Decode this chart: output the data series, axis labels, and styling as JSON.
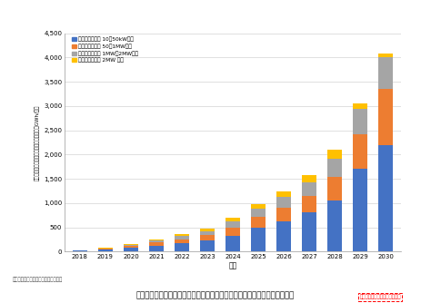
{
  "years": [
    "2018",
    "2019",
    "2020",
    "2021",
    "2022",
    "2023",
    "2024",
    "2025",
    "2026",
    "2027",
    "2028",
    "2029",
    "2030"
  ],
  "series": {
    "s1_blue": [
      15,
      35,
      75,
      120,
      165,
      220,
      330,
      500,
      620,
      800,
      1050,
      1700,
      2200
    ],
    "s2_orange": [
      5,
      18,
      40,
      65,
      90,
      120,
      160,
      220,
      280,
      350,
      480,
      720,
      1150
    ],
    "s3_gray": [
      3,
      12,
      25,
      45,
      65,
      85,
      130,
      170,
      220,
      280,
      380,
      530,
      650
    ],
    "s4_yellow": [
      2,
      8,
      15,
      25,
      35,
      50,
      70,
      90,
      110,
      140,
      190,
      100,
      90
    ]
  },
  "colors": {
    "s1_blue": "#4472C4",
    "s2_orange": "#ED7D31",
    "s3_gray": "#A5A5A5",
    "s4_yellow": "#FFC000"
  },
  "legend_labels": {
    "s1_blue": "太陽光発電容量 10～50kW未満",
    "s2_orange": "太陽光発電容量 50～1MW未満",
    "s3_gray": "太陽光発電容量 1MW～2MW未満",
    "s4_yellow": "太陽光発電容量 2MW 以上"
  },
  "xlabel": "年度",
  "ylabel": "太陽光発電関連定置型蓄電池年間導入量（GWh/年）",
  "ylim_max": 4500,
  "ytick_vals": [
    0,
    500,
    1000,
    1500,
    2000,
    2500,
    3000,
    3500,
    4000,
    4500
  ],
  "ytick_labels": [
    "0",
    "500",
    "1,000",
    "1,500",
    "2,000",
    "2,500",
    "3,000",
    "3,500",
    "4,000",
    "4,500"
  ],
  "source_text": "出典：株式会社資源総合システム調べ",
  "caption": "太陽光発電関連定置型蓄電池年間導入量予測（導入・技術開発加速ケース）",
  "annotation_text": "『導入・技術開発加速ケース』",
  "bg_color": "#FFFFFF",
  "plot_bg": "#F2F2F2"
}
